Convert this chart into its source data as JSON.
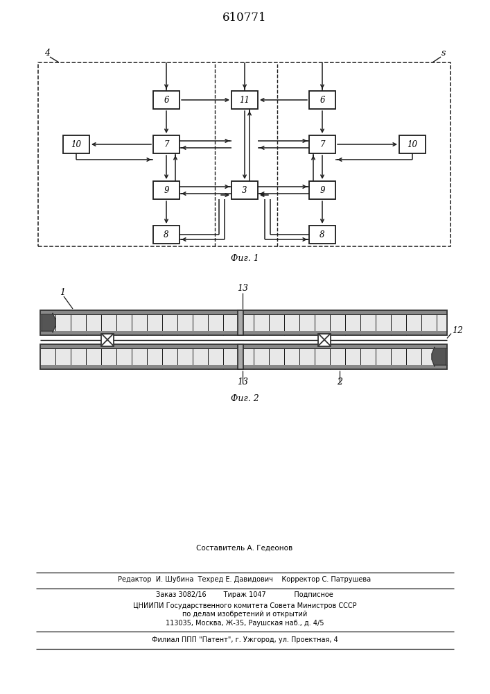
{
  "patent_number": "610771",
  "fig1_caption": "Фиг. 1",
  "fig2_caption": "Фиг. 2",
  "label_4": "4",
  "label_s": "s",
  "label_1": "1",
  "label_2": "2",
  "label_12": "12",
  "label_13_top": "13",
  "label_13_bot": "13",
  "footer_line1": "Составитель А. Гедеонов",
  "footer_line2": "Редактор  И. Шубина  Техред Е. Давидович    Корректор С. Патрушева",
  "footer_line3": "Заказ 3082/16        Тираж 1047             Подписное",
  "footer_line4": "ЦНИИПИ Государственного комитета Совета Министров СССР",
  "footer_line5": "по делам изобретений и открытий",
  "footer_line6": "113035, Москва, Ж-35, Раушская наб., д. 4/5",
  "footer_line7": "Филиал ППП \"Патент\", г. Ужгород, ул. Проектная, 4",
  "bg_color": "#ffffff",
  "box_color": "#1a1a1a",
  "line_color": "#1a1a1a"
}
